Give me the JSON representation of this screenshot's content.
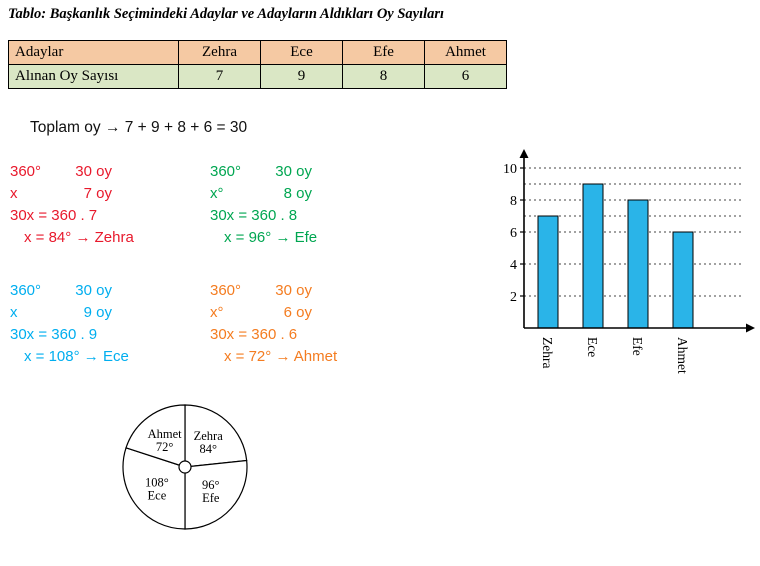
{
  "title": "Tablo: Başkanlık Seçimindeki Adaylar ve Adayların Aldıkları Oy Sayıları",
  "table": {
    "header": [
      "Adaylar",
      "Zehra",
      "Ece",
      "Efe",
      "Ahmet"
    ],
    "row": [
      "Alınan Oy Sayısı",
      "7",
      "9",
      "8",
      "6"
    ],
    "header_bg": "#f5c9a3",
    "row_bg": "#dae7c5"
  },
  "total_line": "Toplam oy → 7 + 9 + 8 + 6 = 30",
  "calculations": [
    {
      "name": "Zehra",
      "color": "#e8192c",
      "r1c1": "360°",
      "r1c2": "30 oy",
      "r2c1": "x",
      "r2c2": "7 oy",
      "line3": "30x = 360 . 7",
      "line4": "x = 84° → Zehra"
    },
    {
      "name": "Efe",
      "color": "#00a651",
      "r1c1": "360°",
      "r1c2": "30 oy",
      "r2c1": "x°",
      "r2c2": "8 oy",
      "line3": "30x = 360 . 8",
      "line4": "x = 96° → Efe"
    },
    {
      "name": "Ece",
      "color": "#00aeef",
      "r1c1": "360°",
      "r1c2": "30 oy",
      "r2c1": "x",
      "r2c2": "9 oy",
      "line3": "30x = 360 . 9",
      "line4": "x = 108° → Ece"
    },
    {
      "name": "Ahmet",
      "color": "#f47c20",
      "r1c1": "360°",
      "r1c2": "30 oy",
      "r2c1": "x°",
      "r2c2": "6 oy",
      "line3": "30x = 360 . 6",
      "line4": "x = 72° → Ahmet"
    }
  ],
  "chart_data": [
    {
      "type": "bar",
      "title": "",
      "categories": [
        "Zehra",
        "Ece",
        "Efe",
        "Ahmet"
      ],
      "values": [
        7,
        9,
        8,
        6
      ],
      "xlabel": "",
      "ylabel": "",
      "ylim": [
        0,
        10
      ],
      "yticks": [
        2,
        4,
        6,
        8,
        10
      ],
      "grid": "dotted horizontal lines at ticks and bar tops",
      "legend": "none",
      "bar_color": "#2ab4e8",
      "bar_outline": "#000000"
    },
    {
      "type": "pie",
      "start_angle_deg_from_top": 0,
      "direction": "clockwise",
      "fill": "#ffffff",
      "slices": [
        {
          "label": "Zehra",
          "angle_label": "84°",
          "degrees": 84
        },
        {
          "label": "Efe",
          "angle_label": "96°",
          "degrees": 96
        },
        {
          "label": "Ece",
          "angle_label": "108°",
          "degrees": 108
        },
        {
          "label": "Ahmet",
          "angle_label": "72°",
          "degrees": 72
        }
      ]
    }
  ]
}
